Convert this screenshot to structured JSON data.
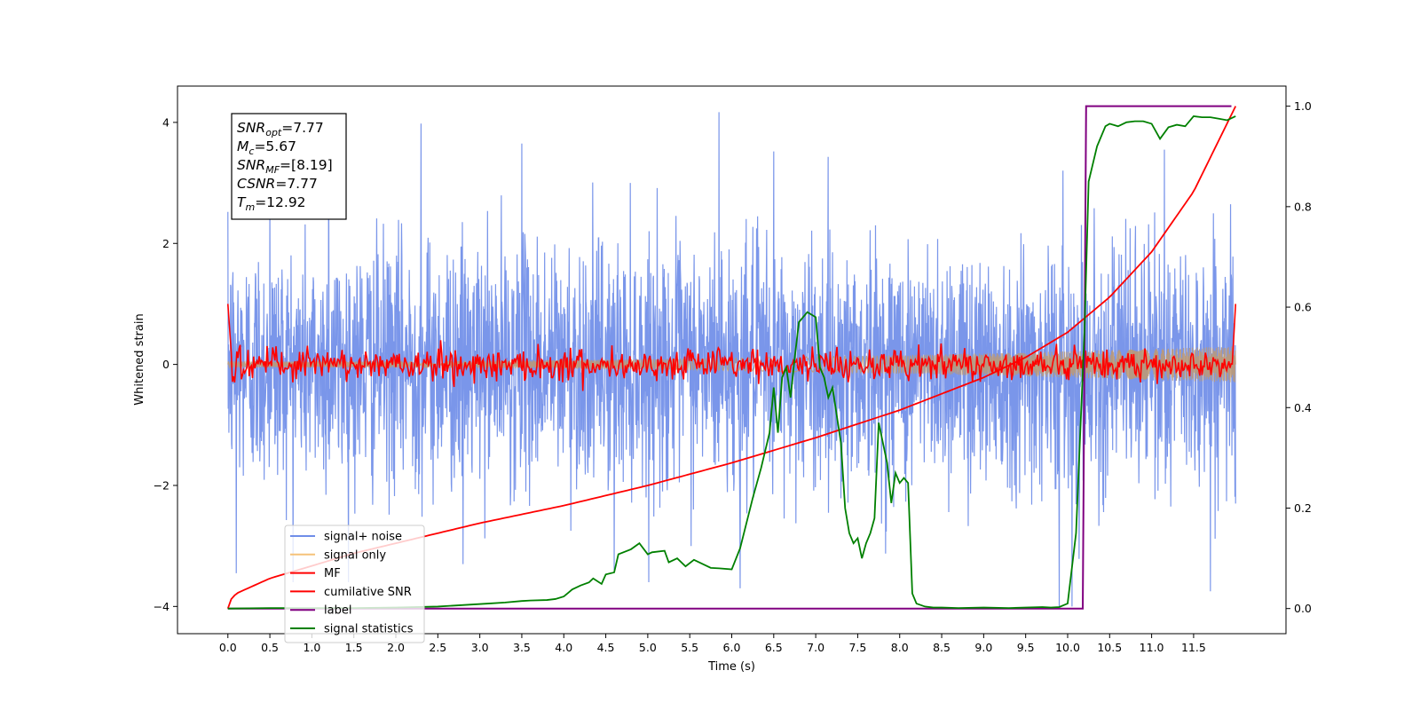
{
  "chart_data": {
    "type": "line",
    "xlabel": "Time (s)",
    "ylabel": "Whitened strain",
    "ylabel_right": "",
    "xlim": [
      -0.6,
      12.6
    ],
    "ylim": [
      -4.45,
      4.6
    ],
    "ylim_right": [
      -0.05,
      1.04
    ],
    "x_ticks": [
      0.0,
      0.5,
      1.0,
      1.5,
      2.0,
      2.5,
      3.0,
      3.5,
      4.0,
      4.5,
      5.0,
      5.5,
      6.0,
      6.5,
      7.0,
      7.5,
      8.0,
      8.5,
      9.0,
      9.5,
      10.0,
      10.5,
      11.0,
      11.5
    ],
    "x_tick_labels": [
      "0.0",
      "0.5",
      "1.0",
      "1.5",
      "2.0",
      "2.5",
      "3.0",
      "3.5",
      "4.0",
      "4.5",
      "5.0",
      "5.5",
      "6.0",
      "6.5",
      "7.0",
      "7.5",
      "8.0",
      "8.5",
      "9.0",
      "9.5",
      "10.0",
      "10.5",
      "11.0",
      "11.5"
    ],
    "y_ticks": [
      -4,
      -2,
      0,
      2,
      4
    ],
    "y_tick_labels": [
      "−4",
      "−2",
      "0",
      "2",
      "4"
    ],
    "y_ticks_right": [
      0.0,
      0.2,
      0.4,
      0.6,
      0.8,
      1.0
    ],
    "y_tick_labels_right": [
      "0.0",
      "0.2",
      "0.4",
      "0.6",
      "0.8",
      "1.0"
    ],
    "grid": false,
    "legend_position": "lower-left",
    "annotation": {
      "lines": [
        {
          "base": "SNR",
          "sub": "opt",
          "value": "=7.77"
        },
        {
          "base": "M",
          "sub": "c",
          "value": "=5.67"
        },
        {
          "base": "SNR",
          "sub": "MF",
          "value": "=[8.19]"
        },
        {
          "base": "CSNR",
          "sub": "",
          "value": "=7.77"
        },
        {
          "base": "T",
          "sub": "m",
          "value": "=12.92"
        }
      ]
    },
    "series": [
      {
        "name": "signal+ noise",
        "axis": "left",
        "color": "#6f8de8",
        "kind": "noise_band",
        "x_range": [
          0.0,
          12.0
        ],
        "mean": 0.0,
        "std": 1.0,
        "extremes": [
          [
            0.0,
            2.52
          ],
          [
            0.1,
            -3.45
          ],
          [
            0.5,
            2.85
          ],
          [
            1.2,
            3.95
          ],
          [
            2.3,
            3.98
          ],
          [
            2.8,
            -3.3
          ],
          [
            3.5,
            3.65
          ],
          [
            4.6,
            -3.4
          ],
          [
            5.85,
            4.17
          ],
          [
            6.1,
            -3.7
          ],
          [
            6.5,
            3.52
          ],
          [
            9.9,
            -4.0
          ],
          [
            10.05,
            -4.0
          ],
          [
            11.15,
            3.55
          ],
          [
            11.7,
            -3.75
          ],
          [
            12.0,
            -2.3
          ]
        ]
      },
      {
        "name": "signal only",
        "axis": "left",
        "color": "#f5c27a",
        "kind": "chirp_envelope",
        "x_range": [
          0.0,
          12.0
        ],
        "amplitude_start": 0.05,
        "amplitude_end": 0.3
      },
      {
        "name": "MF",
        "axis": "left",
        "color": "#ff0000",
        "kind": "oscillation",
        "x_range": [
          0.0,
          12.0
        ],
        "start_value": 1.0,
        "end_value": 1.0,
        "amplitude": 0.15
      },
      {
        "name": "cumilative SNR",
        "axis": "right",
        "color": "#ff0000",
        "x": [
          0.0,
          0.02,
          0.1,
          0.5,
          1.0,
          1.5,
          2.0,
          3.0,
          4.0,
          5.0,
          6.0,
          7.0,
          8.0,
          9.0,
          9.5,
          10.0,
          10.5,
          11.0,
          11.5,
          12.0
        ],
        "y": [
          0.0,
          0.015,
          0.03,
          0.06,
          0.085,
          0.11,
          0.13,
          0.17,
          0.205,
          0.245,
          0.29,
          0.34,
          0.395,
          0.46,
          0.5,
          0.55,
          0.62,
          0.71,
          0.83,
          1.0
        ]
      },
      {
        "name": "label",
        "axis": "right",
        "color": "#800080",
        "x": [
          0.0,
          10.18,
          10.22,
          11.95
        ],
        "y": [
          0.0,
          0.0,
          1.0,
          1.0
        ]
      },
      {
        "name": "signal statistics",
        "axis": "right",
        "color": "#008000",
        "x": [
          0.0,
          0.5,
          1.0,
          1.5,
          2.0,
          2.5,
          2.7,
          2.9,
          3.1,
          3.3,
          3.5,
          3.6,
          3.8,
          3.9,
          4.0,
          4.05,
          4.1,
          4.2,
          4.3,
          4.35,
          4.45,
          4.5,
          4.6,
          4.65,
          4.8,
          4.9,
          5.0,
          5.05,
          5.2,
          5.25,
          5.35,
          5.45,
          5.55,
          5.75,
          5.85,
          6.0,
          6.1,
          6.25,
          6.35,
          6.45,
          6.5,
          6.55,
          6.6,
          6.65,
          6.7,
          6.75,
          6.8,
          6.9,
          7.0,
          7.05,
          7.1,
          7.15,
          7.2,
          7.3,
          7.35,
          7.4,
          7.45,
          7.5,
          7.55,
          7.6,
          7.65,
          7.7,
          7.75,
          7.8,
          7.85,
          7.9,
          7.95,
          8.0,
          8.05,
          8.1,
          8.15,
          8.2,
          8.3,
          8.4,
          8.5,
          8.7,
          9.0,
          9.3,
          9.5,
          9.7,
          9.8,
          9.9,
          10.0,
          10.1,
          10.2,
          10.25,
          10.35,
          10.45,
          10.5,
          10.6,
          10.7,
          10.8,
          10.9,
          11.0,
          11.05,
          11.1,
          11.2,
          11.3,
          11.4,
          11.5,
          11.6,
          11.7,
          11.8,
          11.9,
          12.0
        ],
        "y": [
          0.0,
          0.001,
          0.001,
          0.001,
          0.002,
          0.004,
          0.006,
          0.008,
          0.01,
          0.012,
          0.015,
          0.016,
          0.017,
          0.019,
          0.024,
          0.031,
          0.038,
          0.046,
          0.052,
          0.06,
          0.049,
          0.068,
          0.072,
          0.108,
          0.118,
          0.13,
          0.108,
          0.112,
          0.115,
          0.092,
          0.1,
          0.084,
          0.097,
          0.081,
          0.08,
          0.078,
          0.12,
          0.22,
          0.28,
          0.35,
          0.44,
          0.35,
          0.46,
          0.48,
          0.42,
          0.5,
          0.57,
          0.59,
          0.58,
          0.48,
          0.46,
          0.42,
          0.44,
          0.33,
          0.2,
          0.15,
          0.13,
          0.14,
          0.1,
          0.13,
          0.15,
          0.18,
          0.37,
          0.33,
          0.29,
          0.21,
          0.27,
          0.25,
          0.26,
          0.25,
          0.03,
          0.01,
          0.004,
          0.002,
          0.002,
          0.001,
          0.002,
          0.001,
          0.002,
          0.003,
          0.002,
          0.003,
          0.01,
          0.15,
          0.55,
          0.85,
          0.92,
          0.96,
          0.965,
          0.96,
          0.968,
          0.97,
          0.97,
          0.965,
          0.95,
          0.935,
          0.958,
          0.963,
          0.96,
          0.98,
          0.978,
          0.978,
          0.975,
          0.972,
          0.98
        ]
      }
    ]
  }
}
